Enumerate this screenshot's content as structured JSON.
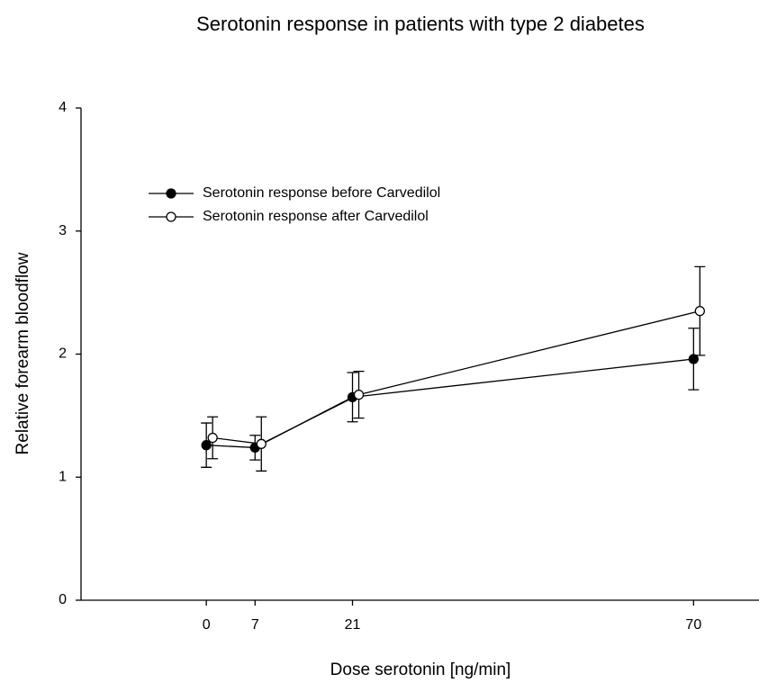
{
  "chart_data": {
    "type": "line",
    "title": "Serotonin response in patients with type 2 diabetes",
    "x_label": "Dose serotonin [ng/min]",
    "y_label": "Relative forearm bloodflow",
    "x": [
      0,
      7,
      21,
      70
    ],
    "series": [
      {
        "name": "Serotonin response before Carvedilol",
        "color": "#000000",
        "marker": "filled",
        "values": [
          1.26,
          1.24,
          1.65,
          1.96
        ],
        "errors": [
          0.18,
          0.1,
          0.2,
          0.25
        ]
      },
      {
        "name": "Serotonin response after Carvedilol",
        "color": "#000000",
        "marker": "open",
        "values": [
          1.32,
          1.27,
          1.67,
          2.35
        ],
        "errors": [
          0.17,
          0.22,
          0.19,
          0.36
        ]
      }
    ],
    "xlim": [
      -18,
      79.4
    ],
    "xticks": [
      0,
      7,
      21,
      70
    ],
    "ylim": [
      0,
      4
    ],
    "yticks": [
      0,
      1,
      2,
      3,
      4
    ],
    "grid": false,
    "legend": "upper-left"
  }
}
